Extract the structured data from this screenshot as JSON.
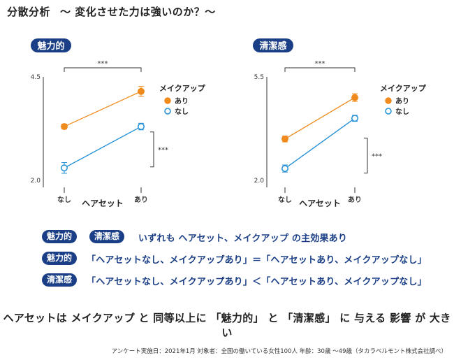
{
  "header": {
    "title": "分散分析",
    "subtitle": "〜 変化させた力は強いのか？〜"
  },
  "colors": {
    "orange": "#f08a1c",
    "blue": "#1f8fd6",
    "navy": "#1b3f86"
  },
  "legend_title": "メイクアップ",
  "chart_data": [
    {
      "type": "line",
      "title": "魅力的",
      "xlabel": "ヘアセット",
      "categories": [
        "なし",
        "あり"
      ],
      "ylim": [
        2.0,
        4.5
      ],
      "yticks": [
        "4.5",
        "2.0"
      ],
      "legend_title": "メイクアップ",
      "series": [
        {
          "name": "あり",
          "values": [
            3.3,
            4.15
          ],
          "color": "#f08a1c",
          "marker": "filled",
          "err": [
            0.06,
            0.12
          ]
        },
        {
          "name": "なし",
          "values": [
            2.3,
            3.3
          ],
          "color": "#1f8fd6",
          "marker": "open",
          "err": [
            0.13,
            0.08
          ]
        }
      ],
      "annotations": {
        "top": "***",
        "right": "***"
      }
    },
    {
      "type": "line",
      "title": "清潔感",
      "xlabel": "ヘアセット",
      "categories": [
        "なし",
        "あり"
      ],
      "ylim": [
        2.0,
        5.5
      ],
      "yticks": [
        "5.5",
        "2.0"
      ],
      "legend_title": "メイクアップ",
      "series": [
        {
          "name": "あり",
          "values": [
            3.4,
            4.8
          ],
          "color": "#f08a1c",
          "marker": "filled",
          "err": [
            0.1,
            0.13
          ]
        },
        {
          "name": "なし",
          "values": [
            2.4,
            4.1
          ],
          "color": "#1f8fd6",
          "marker": "open",
          "err": [
            0.12,
            0.1
          ]
        }
      ],
      "annotations": {
        "top": "***",
        "right": "***"
      }
    }
  ],
  "conclusions": {
    "row1": {
      "badge1": "魅力的",
      "badge2": "清潔感",
      "text": "いずれも ヘアセット、メイクアップ の主効果あり"
    },
    "row2": {
      "badge": "魅力的",
      "text": "「ヘアセットなし、メイクアップあり」＝「ヘアセットあり、メイクアップなし」"
    },
    "row3": {
      "badge": "清潔感",
      "text": "「ヘアセットなし、メイクアップあり」＜「ヘアセットあり、メイクアップなし」"
    }
  },
  "summary": "ヘアセットは メイクアップ と 同等以上に 「魅力的」 と 「清潔感」 に 与える 影響 が 大きい",
  "footnote": "アンケート実施日：2021年1月  対象者：全国の働いている女性100人  年齢：30歳 〜49歳（タカラベルモント株式会社調べ）"
}
